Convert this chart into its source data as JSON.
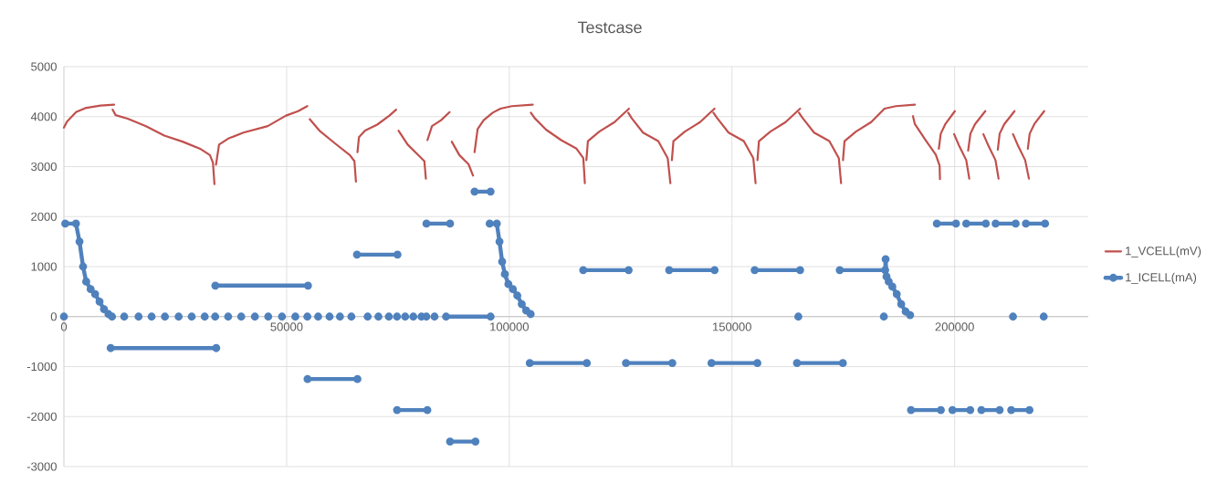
{
  "chart_data": {
    "type": "line",
    "title": "Testcase",
    "xlim": [
      0,
      230000
    ],
    "xticks": [
      0,
      50000,
      100000,
      150000,
      200000
    ],
    "ylim": [
      -3000,
      5000
    ],
    "yticks": [
      -3000,
      -2000,
      -1000,
      0,
      1000,
      2000,
      3000,
      4000,
      5000
    ],
    "grid": true,
    "legend": "right",
    "series": [
      {
        "name": "1_VCELL(mV)",
        "color": "#c0504d",
        "marker": "none",
        "x": [
          0,
          683,
          2732,
          4780,
          8200,
          11270,
          null,
          10930,
          11610,
          14340,
          18440,
          22540,
          26640,
          30730,
          32780,
          33460,
          33800,
          null,
          34150,
          34830,
          36880,
          40290,
          45760,
          49860,
          52590,
          54640,
          null,
          55190,
          57370,
          60790,
          64200,
          65230,
          65570,
          null,
          65910,
          66250,
          67620,
          70350,
          73080,
          74580,
          null,
          75130,
          77180,
          79910,
          80930,
          81270,
          null,
          81620,
          82640,
          84690,
          86600,
          null,
          87080,
          88790,
          90840,
          91860,
          null,
          92200,
          92890,
          94250,
          96300,
          98010,
          100570,
          105270,
          null,
          104840,
          105700,
          108260,
          111660,
          115090,
          116620,
          116970,
          null,
          117310,
          117650,
          120210,
          123630,
          126870,
          null,
          126700,
          127470,
          130030,
          133440,
          135570,
          136170,
          null,
          136510,
          136850,
          139420,
          142830,
          146080,
          null,
          145820,
          146680,
          149240,
          152650,
          154790,
          155300,
          null,
          155720,
          156060,
          158630,
          162040,
          165290,
          null,
          165030,
          165880,
          168440,
          171860,
          173990,
          174500,
          null,
          174930,
          175270,
          177840,
          181250,
          184240,
          186800,
          191070,
          null,
          190640,
          191070,
          193630,
          195760,
          196620,
          196700,
          null,
          196450,
          196880,
          197900,
          200040,
          null,
          199870,
          200890,
          202600,
          203280,
          null,
          203030,
          203540,
          204570,
          206870,
          null,
          206440,
          207470,
          209170,
          209860,
          null,
          209690,
          210110,
          211140,
          213440,
          null,
          213100,
          214120,
          215830,
          216680,
          null,
          216430,
          216850,
          217880,
          220100
        ],
        "values": [
          3780,
          3900,
          4090,
          4170,
          4220,
          4240,
          null,
          4140,
          4030,
          3960,
          3810,
          3620,
          3500,
          3350,
          3230,
          3080,
          2650,
          null,
          3040,
          3440,
          3560,
          3680,
          3810,
          4020,
          4110,
          4210,
          null,
          3950,
          3720,
          3470,
          3230,
          3110,
          2700,
          null,
          3290,
          3590,
          3720,
          3840,
          4020,
          4140,
          null,
          3720,
          3440,
          3200,
          3110,
          2760,
          null,
          3530,
          3810,
          3930,
          4090,
          null,
          3500,
          3230,
          3050,
          2820,
          null,
          3290,
          3750,
          3930,
          4080,
          4160,
          4210,
          4240,
          null,
          4080,
          3970,
          3740,
          3530,
          3360,
          3170,
          2670,
          null,
          3130,
          3510,
          3700,
          3890,
          4160,
          null,
          4080,
          3970,
          3680,
          3510,
          3170,
          2670,
          null,
          3130,
          3510,
          3700,
          3890,
          4160,
          null,
          4080,
          3970,
          3680,
          3510,
          3170,
          2670,
          null,
          3130,
          3510,
          3700,
          3890,
          4160,
          null,
          4080,
          3970,
          3680,
          3510,
          3170,
          2670,
          null,
          3130,
          3510,
          3700,
          3890,
          4160,
          4210,
          4240,
          null,
          4010,
          3850,
          3510,
          3240,
          3020,
          2750,
          null,
          3360,
          3660,
          3850,
          4110,
          null,
          3650,
          3440,
          3130,
          2760,
          null,
          3320,
          3660,
          3850,
          4110,
          null,
          3650,
          3440,
          3130,
          2760,
          null,
          3340,
          3660,
          3850,
          4110,
          null,
          3650,
          3440,
          3130,
          2760,
          null,
          3360,
          3660,
          3850,
          4110
        ]
      },
      {
        "name": "1_ICELL(mA)",
        "color": "#4f81bd",
        "marker": "circle",
        "x": [
          0,
          null,
          300,
          2700,
          3500,
          4300,
          5000,
          6000,
          7000,
          8000,
          9000,
          10000,
          10800,
          null,
          13540,
          null,
          16760,
          null,
          19690,
          null,
          22680,
          null,
          25760,
          null,
          28690,
          null,
          31610,
          null,
          33960,
          null,
          36880,
          null,
          39810,
          null,
          42880,
          null,
          45880,
          null,
          48960,
          null,
          51960,
          null,
          54660,
          null,
          57080,
          null,
          59640,
          null,
          61980,
          null,
          64540,
          null,
          68200,
          null,
          70620,
          null,
          72960,
          null,
          74790,
          null,
          76620,
          null,
          78450,
          null,
          80280,
          null,
          81380,
          null,
          83210,
          null,
          85800,
          95800,
          null,
          164900,
          null,
          184100,
          null,
          213100,
          null,
          220000,
          null,
          10500,
          34200,
          null,
          34000,
          54800,
          null,
          54700,
          65900,
          null,
          65800,
          74900,
          null,
          74800,
          81600,
          null,
          81400,
          86700,
          null,
          86700,
          92400,
          null,
          92200,
          95800,
          null,
          95600,
          97200,
          97800,
          98400,
          99000,
          99800,
          100800,
          101800,
          102800,
          103800,
          104800,
          null,
          104600,
          117400,
          null,
          116600,
          126800,
          null,
          126200,
          136600,
          null,
          135900,
          146100,
          null,
          145400,
          155700,
          null,
          155100,
          165300,
          null,
          164600,
          174900,
          null,
          174200,
          184400,
          184500,
          184700,
          185200,
          186000,
          187000,
          188000,
          189000,
          190000,
          null,
          190200,
          196900,
          null,
          196000,
          200300,
          null,
          199500,
          203500,
          null,
          202600,
          207000,
          null,
          206000,
          210100,
          null,
          209200,
          213700,
          null,
          212700,
          216800,
          null,
          216000,
          220300
        ],
        "values": [
          0,
          null,
          1860,
          1860,
          1500,
          1000,
          700,
          550,
          450,
          300,
          150,
          50,
          0,
          null,
          0,
          null,
          0,
          null,
          0,
          null,
          0,
          null,
          0,
          null,
          0,
          null,
          0,
          null,
          0,
          null,
          0,
          null,
          0,
          null,
          0,
          null,
          0,
          null,
          0,
          null,
          0,
          null,
          0,
          null,
          0,
          null,
          0,
          null,
          0,
          null,
          0,
          null,
          0,
          null,
          0,
          null,
          0,
          null,
          0,
          null,
          0,
          null,
          0,
          null,
          0,
          null,
          0,
          null,
          0,
          null,
          0,
          0,
          null,
          0,
          null,
          0,
          null,
          0,
          null,
          0,
          null,
          -630,
          -630,
          null,
          620,
          620,
          null,
          -1250,
          -1250,
          null,
          1240,
          1240,
          null,
          -1870,
          -1870,
          null,
          1860,
          1860,
          null,
          -2500,
          -2500,
          null,
          2500,
          2500,
          null,
          1860,
          1860,
          1500,
          1100,
          850,
          650,
          550,
          420,
          250,
          120,
          50,
          null,
          -930,
          -930,
          null,
          930,
          930,
          null,
          -930,
          -930,
          null,
          930,
          930,
          null,
          -930,
          -930,
          null,
          930,
          930,
          null,
          -930,
          -930,
          null,
          930,
          930,
          1150,
          800,
          700,
          600,
          450,
          250,
          100,
          30,
          null,
          -1870,
          -1870,
          null,
          1860,
          1860,
          null,
          -1870,
          -1870,
          null,
          1860,
          1860,
          null,
          -1870,
          -1870,
          null,
          1860,
          1860,
          null,
          -1870,
          -1870,
          null,
          1860,
          1860
        ]
      }
    ]
  }
}
